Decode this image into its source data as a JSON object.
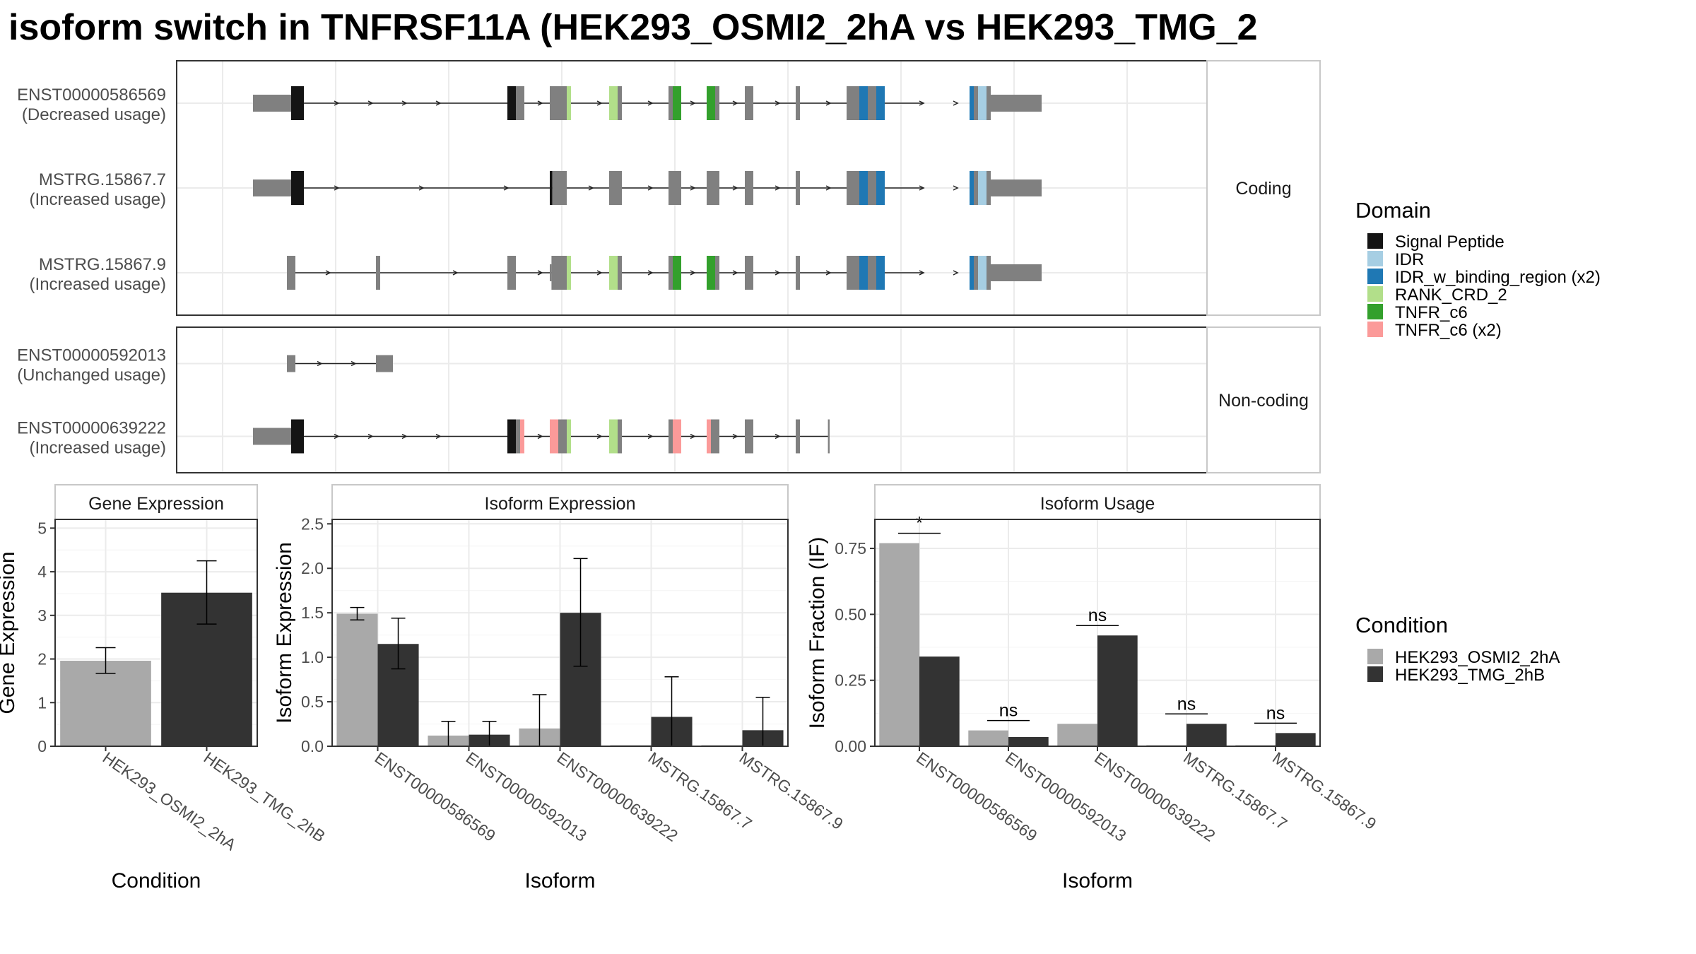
{
  "title": "isoform switch in TNFRSF11A (HEK293_OSMI2_2hA vs HEK293_TMG_2",
  "colors": {
    "exon": "#808080",
    "signal_peptide": "#141414",
    "idr": "#a6cee3",
    "idr_binding": "#1f78b4",
    "rank_crd_2": "#b2df8a",
    "tnfr_c6": "#33a02c",
    "tnfr_c6_x2": "#fb9a99",
    "cond_a": "#a9a9a9",
    "cond_b": "#333333",
    "intron": "#222222"
  },
  "legend": {
    "domain_title": "Domain",
    "domain_items": [
      {
        "label": "Signal Peptide",
        "color": "#141414"
      },
      {
        "label": "IDR",
        "color": "#a6cee3"
      },
      {
        "label": "IDR_w_binding_region (x2)",
        "color": "#1f78b4"
      },
      {
        "label": "RANK_CRD_2",
        "color": "#b2df8a"
      },
      {
        "label": "TNFR_c6",
        "color": "#33a02c"
      },
      {
        "label": "TNFR_c6 (x2)",
        "color": "#fb9a99"
      }
    ],
    "condition_title": "Condition",
    "condition_items": [
      {
        "label": "HEK293_OSMI2_2hA",
        "color": "#a9a9a9"
      },
      {
        "label": "HEK293_TMG_2hB",
        "color": "#333333"
      }
    ]
  },
  "structure": {
    "facets": [
      {
        "label": "Coding",
        "transcripts": [
          {
            "name": "ENST00000586569",
            "usage": "(Decreased usage)",
            "intron": [
              8.5,
              83
            ],
            "blocks": [
              {
                "s": 4,
                "e": 8.5,
                "h": "utr",
                "c": "exon"
              },
              {
                "s": 8.5,
                "e": 10,
                "h": "cds",
                "c": "signal_peptide"
              },
              {
                "s": 34,
                "e": 35,
                "h": "cds",
                "c": "signal_peptide"
              },
              {
                "s": 35,
                "e": 36,
                "h": "cds",
                "c": "exon"
              },
              {
                "s": 39,
                "e": 41,
                "h": "cds",
                "c": "exon"
              },
              {
                "s": 41,
                "e": 41.5,
                "h": "cds",
                "c": "rank_crd_2"
              },
              {
                "s": 46,
                "e": 47,
                "h": "cds",
                "c": "rank_crd_2"
              },
              {
                "s": 47,
                "e": 47.5,
                "h": "cds",
                "c": "exon"
              },
              {
                "s": 53,
                "e": 53.5,
                "h": "cds",
                "c": "exon"
              },
              {
                "s": 53.5,
                "e": 54.5,
                "h": "cds",
                "c": "tnfr_c6"
              },
              {
                "s": 57.5,
                "e": 58.5,
                "h": "cds",
                "c": "tnfr_c6"
              },
              {
                "s": 58.5,
                "e": 59,
                "h": "cds",
                "c": "exon"
              },
              {
                "s": 62,
                "e": 63,
                "h": "cds",
                "c": "exon"
              },
              {
                "s": 68,
                "e": 68.5,
                "h": "cds",
                "c": "exon"
              },
              {
                "s": 74,
                "e": 75.5,
                "h": "cds",
                "c": "exon"
              },
              {
                "s": 75.5,
                "e": 76.5,
                "h": "cds",
                "c": "idr_binding"
              },
              {
                "s": 76.5,
                "e": 77.5,
                "h": "cds",
                "c": "exon"
              },
              {
                "s": 77.5,
                "e": 78.5,
                "h": "cds",
                "c": "idr_binding"
              },
              {
                "s": 88.5,
                "e": 89,
                "h": "cds",
                "c": "idr_binding"
              },
              {
                "s": 89,
                "e": 89.5,
                "h": "cds",
                "c": "exon"
              },
              {
                "s": 89.5,
                "e": 90.5,
                "h": "cds",
                "c": "idr"
              },
              {
                "s": 90.5,
                "e": 91,
                "h": "cds",
                "c": "exon"
              },
              {
                "s": 91,
                "e": 97,
                "h": "utr",
                "c": "exon"
              }
            ],
            "arrows": [
              14,
              18,
              22,
              26,
              38,
              45,
              51,
              56,
              61,
              66,
              72,
              83,
              87
            ]
          },
          {
            "name": "MSTRG.15867.7",
            "usage": "(Increased usage)",
            "intron": [
              8.5,
              83
            ],
            "blocks": [
              {
                "s": 4,
                "e": 8.5,
                "h": "utr",
                "c": "exon"
              },
              {
                "s": 8.5,
                "e": 10,
                "h": "cds",
                "c": "signal_peptide"
              },
              {
                "s": 39,
                "e": 39.3,
                "h": "cds",
                "c": "signal_peptide"
              },
              {
                "s": 39.3,
                "e": 41,
                "h": "cds",
                "c": "exon"
              },
              {
                "s": 46,
                "e": 47.5,
                "h": "cds",
                "c": "exon"
              },
              {
                "s": 53,
                "e": 54.5,
                "h": "cds",
                "c": "exon"
              },
              {
                "s": 57.5,
                "e": 59,
                "h": "cds",
                "c": "exon"
              },
              {
                "s": 62,
                "e": 63,
                "h": "cds",
                "c": "exon"
              },
              {
                "s": 68,
                "e": 68.5,
                "h": "cds",
                "c": "exon"
              },
              {
                "s": 74,
                "e": 75.5,
                "h": "cds",
                "c": "exon"
              },
              {
                "s": 75.5,
                "e": 76.5,
                "h": "cds",
                "c": "idr_binding"
              },
              {
                "s": 76.5,
                "e": 77.5,
                "h": "cds",
                "c": "exon"
              },
              {
                "s": 77.5,
                "e": 78.5,
                "h": "cds",
                "c": "idr_binding"
              },
              {
                "s": 88.5,
                "e": 89,
                "h": "cds",
                "c": "idr_binding"
              },
              {
                "s": 89,
                "e": 89.5,
                "h": "cds",
                "c": "exon"
              },
              {
                "s": 89.5,
                "e": 90.5,
                "h": "cds",
                "c": "idr"
              },
              {
                "s": 90.5,
                "e": 91,
                "h": "cds",
                "c": "exon"
              },
              {
                "s": 91,
                "e": 97,
                "h": "utr",
                "c": "exon"
              }
            ],
            "arrows": [
              14,
              24,
              34,
              44,
              51,
              56,
              61,
              66,
              72,
              83,
              87
            ]
          },
          {
            "name": "MSTRG.15867.9",
            "usage": "(Increased usage)",
            "intron": [
              9,
              83
            ],
            "blocks": [
              {
                "s": 8,
                "e": 9,
                "h": "cds",
                "c": "exon"
              },
              {
                "s": 18.5,
                "e": 19,
                "h": "cds",
                "c": "exon"
              },
              {
                "s": 34,
                "e": 35,
                "h": "cds",
                "c": "exon"
              },
              {
                "s": 39,
                "e": 39.2,
                "h": "utr",
                "c": "exon"
              },
              {
                "s": 39.2,
                "e": 41,
                "h": "cds",
                "c": "exon"
              },
              {
                "s": 41,
                "e": 41.5,
                "h": "cds",
                "c": "rank_crd_2"
              },
              {
                "s": 46,
                "e": 47,
                "h": "cds",
                "c": "rank_crd_2"
              },
              {
                "s": 47,
                "e": 47.5,
                "h": "cds",
                "c": "exon"
              },
              {
                "s": 53,
                "e": 53.5,
                "h": "cds",
                "c": "exon"
              },
              {
                "s": 53.5,
                "e": 54.5,
                "h": "cds",
                "c": "tnfr_c6"
              },
              {
                "s": 57.5,
                "e": 58.5,
                "h": "cds",
                "c": "tnfr_c6"
              },
              {
                "s": 58.5,
                "e": 59,
                "h": "cds",
                "c": "exon"
              },
              {
                "s": 62,
                "e": 63,
                "h": "cds",
                "c": "exon"
              },
              {
                "s": 68,
                "e": 68.5,
                "h": "cds",
                "c": "exon"
              },
              {
                "s": 74,
                "e": 75.5,
                "h": "cds",
                "c": "exon"
              },
              {
                "s": 75.5,
                "e": 76.5,
                "h": "cds",
                "c": "idr_binding"
              },
              {
                "s": 76.5,
                "e": 77.5,
                "h": "cds",
                "c": "exon"
              },
              {
                "s": 77.5,
                "e": 78.5,
                "h": "cds",
                "c": "idr_binding"
              },
              {
                "s": 88.5,
                "e": 89,
                "h": "cds",
                "c": "idr_binding"
              },
              {
                "s": 89,
                "e": 89.5,
                "h": "cds",
                "c": "exon"
              },
              {
                "s": 89.5,
                "e": 90.5,
                "h": "cds",
                "c": "idr"
              },
              {
                "s": 90.5,
                "e": 91,
                "h": "cds",
                "c": "exon"
              },
              {
                "s": 91,
                "e": 97,
                "h": "utr",
                "c": "exon"
              }
            ],
            "arrows": [
              13,
              28,
              38,
              45,
              51,
              56,
              61,
              66,
              72,
              83,
              87
            ]
          }
        ]
      },
      {
        "label": "Non-coding",
        "transcripts": [
          {
            "name": "ENST00000592013",
            "usage": "(Unchanged usage)",
            "intron": [
              9,
              18.5
            ],
            "blocks": [
              {
                "s": 8,
                "e": 9,
                "h": "utr",
                "c": "exon"
              },
              {
                "s": 18.5,
                "e": 20.5,
                "h": "utr",
                "c": "exon"
              }
            ],
            "arrows": [
              12,
              16
            ]
          },
          {
            "name": "ENST00000639222",
            "usage": "(Increased usage)",
            "intron": [
              8.5,
              72
            ],
            "blocks": [
              {
                "s": 4,
                "e": 8.5,
                "h": "utr",
                "c": "exon"
              },
              {
                "s": 8.5,
                "e": 10,
                "h": "cds",
                "c": "signal_peptide"
              },
              {
                "s": 34,
                "e": 35,
                "h": "cds",
                "c": "signal_peptide"
              },
              {
                "s": 35,
                "e": 35.5,
                "h": "cds",
                "c": "exon"
              },
              {
                "s": 35.5,
                "e": 36,
                "h": "cds",
                "c": "tnfr_c6_x2"
              },
              {
                "s": 39,
                "e": 40,
                "h": "cds",
                "c": "tnfr_c6_x2"
              },
              {
                "s": 40,
                "e": 41,
                "h": "cds",
                "c": "exon"
              },
              {
                "s": 41,
                "e": 41.5,
                "h": "cds",
                "c": "rank_crd_2"
              },
              {
                "s": 46,
                "e": 47,
                "h": "cds",
                "c": "rank_crd_2"
              },
              {
                "s": 47,
                "e": 47.5,
                "h": "cds",
                "c": "exon"
              },
              {
                "s": 53,
                "e": 53.5,
                "h": "cds",
                "c": "exon"
              },
              {
                "s": 53.5,
                "e": 54.5,
                "h": "cds",
                "c": "tnfr_c6_x2"
              },
              {
                "s": 57.5,
                "e": 58,
                "h": "cds",
                "c": "tnfr_c6_x2"
              },
              {
                "s": 58,
                "e": 59,
                "h": "cds",
                "c": "exon"
              },
              {
                "s": 62,
                "e": 63,
                "h": "cds",
                "c": "exon"
              },
              {
                "s": 68,
                "e": 68.5,
                "h": "cds",
                "c": "exon"
              },
              {
                "s": 71.8,
                "e": 72,
                "h": "cds",
                "c": "exon"
              }
            ],
            "arrows": [
              14,
              18,
              22,
              26,
              38,
              45,
              51,
              56,
              61,
              66
            ]
          }
        ]
      }
    ]
  },
  "chart_data": [
    {
      "type": "bar",
      "panel": "Gene Expression",
      "xlabel": "Condition",
      "ylabel": "Gene Expression",
      "ylim": [
        0,
        5.2
      ],
      "yticks": [
        0,
        1,
        2,
        3,
        4,
        5
      ],
      "categories": [
        "HEK293_OSMI2_2hA",
        "HEK293_TMG_2hB"
      ],
      "values": [
        1.96,
        3.52
      ],
      "errors": [
        [
          1.67,
          2.26
        ],
        [
          2.8,
          4.25
        ]
      ]
    },
    {
      "type": "bar",
      "panel": "Isoform Expression",
      "xlabel": "Isoform",
      "ylabel": "Isoform Expression",
      "ylim": [
        0,
        2.55
      ],
      "yticks": [
        0.0,
        0.5,
        1.0,
        1.5,
        2.0,
        2.5
      ],
      "ytick_labels": [
        "0.0",
        "0.5",
        "1.0",
        "1.5",
        "2.0",
        "2.5"
      ],
      "categories": [
        "ENST00000586569",
        "ENST00000592013",
        "ENST00000639222",
        "MSTRG.15867.7",
        "MSTRG.15867.9"
      ],
      "series": [
        {
          "name": "HEK293_OSMI2_2hA",
          "values": [
            1.49,
            0.12,
            0.2,
            0.0,
            0.0
          ],
          "errors": [
            [
              1.42,
              1.56
            ],
            [
              0.0,
              0.28
            ],
            [
              0.0,
              0.58
            ],
            [
              0.0,
              0.0
            ],
            [
              0.0,
              0.0
            ]
          ]
        },
        {
          "name": "HEK293_TMG_2hB",
          "values": [
            1.15,
            0.13,
            1.5,
            0.33,
            0.18
          ],
          "errors": [
            [
              0.87,
              1.44
            ],
            [
              0.0,
              0.28
            ],
            [
              0.9,
              2.11
            ],
            [
              0.0,
              0.78
            ],
            [
              0.0,
              0.55
            ]
          ]
        }
      ]
    },
    {
      "type": "bar",
      "panel": "Isoform Usage",
      "xlabel": "Isoform",
      "ylabel": "Isoform Fraction (IF)",
      "ylim": [
        0,
        0.86
      ],
      "yticks": [
        0.0,
        0.25,
        0.5,
        0.75
      ],
      "ytick_labels": [
        "0.00",
        "0.25",
        "0.50",
        "0.75"
      ],
      "categories": [
        "ENST00000586569",
        "ENST00000592013",
        "ENST00000639222",
        "MSTRG.15867.7",
        "MSTRG.15867.9"
      ],
      "series": [
        {
          "name": "HEK293_OSMI2_2hA",
          "values": [
            0.77,
            0.06,
            0.085,
            0.0,
            0.0
          ]
        },
        {
          "name": "HEK293_TMG_2hB",
          "values": [
            0.34,
            0.035,
            0.42,
            0.085,
            0.05
          ]
        }
      ],
      "significance": [
        "*",
        "ns",
        "ns",
        "ns",
        "ns"
      ]
    }
  ]
}
